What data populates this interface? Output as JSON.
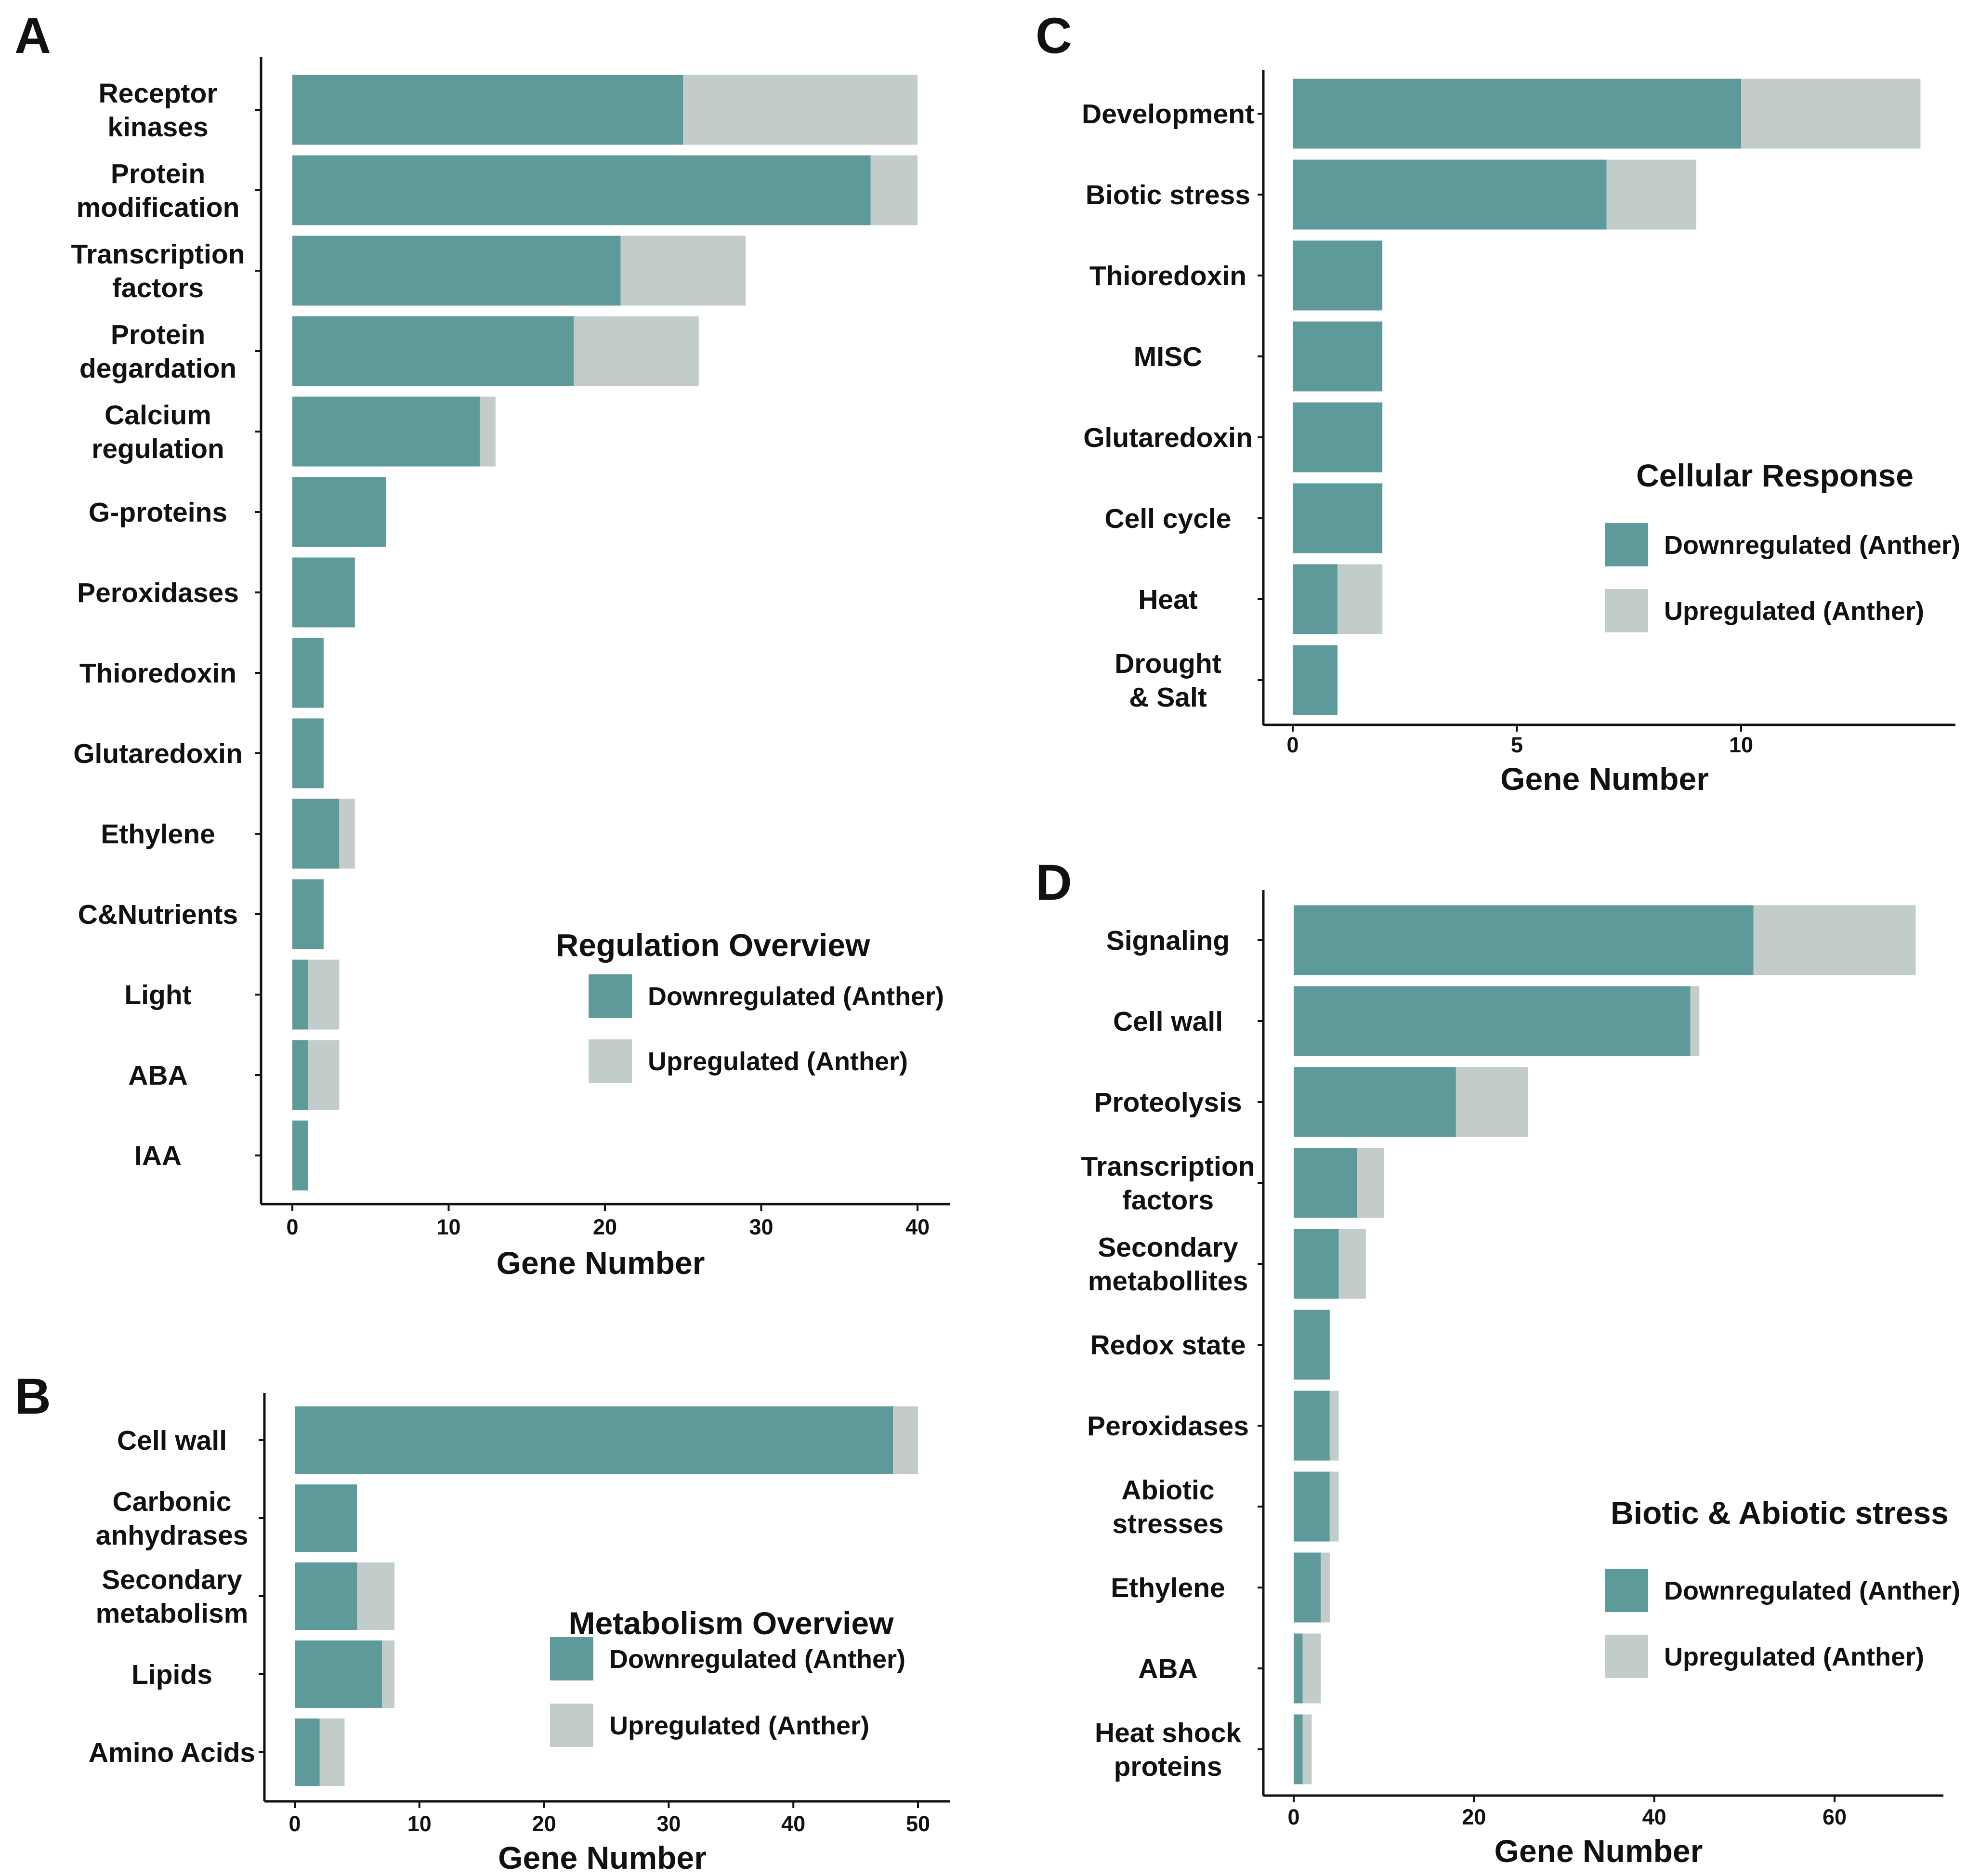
{
  "colors": {
    "down": "#5f9a9a",
    "up": "#c2cccb",
    "axis": "#111111",
    "text": "#111111"
  },
  "chart_data": [
    {
      "id": "A",
      "panel_label": "A",
      "type": "bar",
      "orientation": "horizontal",
      "stacked": true,
      "legend_title": "Regulation Overview",
      "xlabel": "Gene Number",
      "xlim": [
        0,
        41.5
      ],
      "xticks": [
        0,
        10,
        20,
        30,
        40
      ],
      "categories": [
        "Receptor\nkinases",
        "Protein\nmodification",
        "Transcription\nfactors",
        "Protein\ndegardation",
        "Calcium\nregulation",
        "G-proteins",
        "Peroxidases",
        "Thioredoxin",
        "Glutaredoxin",
        "Ethylene",
        "C&Nutrients",
        "Light",
        "ABA",
        "IAA"
      ],
      "series": [
        {
          "name": "Downregulated (Anther)",
          "values": [
            25,
            37,
            21,
            18,
            12,
            6,
            4,
            2,
            2,
            3,
            2,
            1,
            1,
            1
          ]
        },
        {
          "name": "Upregulated (Anther)",
          "values": [
            15,
            3,
            8,
            8,
            1,
            0,
            0,
            0,
            0,
            1,
            0,
            2,
            2,
            0
          ]
        }
      ]
    },
    {
      "id": "B",
      "panel_label": "B",
      "type": "bar",
      "orientation": "horizontal",
      "stacked": true,
      "legend_title": "Metabolism Overview",
      "xlabel": "Gene Number",
      "xlim": [
        0,
        52
      ],
      "xticks": [
        0,
        10,
        20,
        30,
        40,
        50
      ],
      "categories": [
        "Cell wall",
        "Carbonic\nanhydrases",
        "Secondary\nmetabolism",
        "Lipids",
        "Amino Acids"
      ],
      "series": [
        {
          "name": "Downregulated (Anther)",
          "values": [
            48,
            5,
            5,
            7,
            2
          ]
        },
        {
          "name": "Upregulated (Anther)",
          "values": [
            2,
            0,
            3,
            1,
            2
          ]
        }
      ]
    },
    {
      "id": "C",
      "panel_label": "C",
      "type": "bar",
      "orientation": "horizontal",
      "stacked": true,
      "legend_title": "Cellular Response",
      "xlabel": "Gene Number",
      "xlim": [
        0,
        14.8
      ],
      "xticks": [
        0,
        5,
        10
      ],
      "categories": [
        "Development",
        "Biotic stress",
        "Thioredoxin",
        "MISC",
        "Glutaredoxin",
        "Cell cycle",
        "Heat",
        "Drought\n& Salt"
      ],
      "series": [
        {
          "name": "Downregulated (Anther)",
          "values": [
            10,
            7,
            2,
            2,
            2,
            2,
            1,
            1
          ]
        },
        {
          "name": "Upregulated (Anther)",
          "values": [
            4,
            2,
            0,
            0,
            0,
            0,
            1,
            0
          ]
        }
      ]
    },
    {
      "id": "D",
      "panel_label": "D",
      "type": "bar",
      "orientation": "horizontal",
      "stacked": true,
      "legend_title": "Biotic & Abiotic stress",
      "xlabel": "Gene Number",
      "xlim": [
        0,
        72
      ],
      "xticks": [
        0,
        20,
        40,
        60
      ],
      "categories": [
        "Signaling",
        "Cell wall",
        "Proteolysis",
        "Transcription\nfactors",
        "Secondary\nmetabollites",
        "Redox state",
        "Peroxidases",
        "Abiotic\nstresses",
        "Ethylene",
        "ABA",
        "Heat shock\nproteins"
      ],
      "series": [
        {
          "name": "Downregulated (Anther)",
          "values": [
            51,
            44,
            18,
            7,
            5,
            4,
            4,
            4,
            3,
            1,
            1
          ]
        },
        {
          "name": "Upregulated (Anther)",
          "values": [
            18,
            1,
            8,
            3,
            3,
            0,
            1,
            1,
            1,
            2,
            1
          ]
        }
      ]
    }
  ]
}
